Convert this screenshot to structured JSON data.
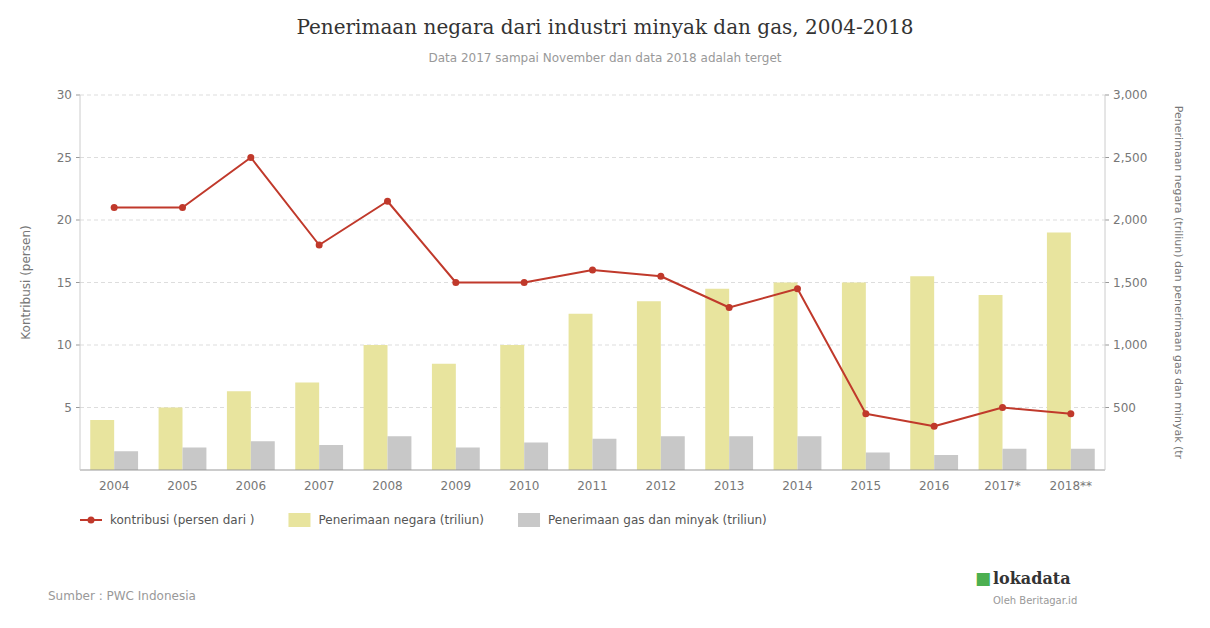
{
  "chart_data": {
    "type": "bar",
    "title": "Penerimaan negara dari industri minyak dan gas, 2004-2018",
    "subtitle": "Data 2017 sampai November dan data 2018 adalah terget",
    "categories": [
      "2004",
      "2005",
      "2006",
      "2007",
      "2008",
      "2009",
      "2010",
      "2011",
      "2012",
      "2013",
      "2014",
      "2015",
      "2016",
      "2017*",
      "2018**"
    ],
    "series": [
      {
        "name": "kontribusi (persen dari )",
        "type": "line",
        "marker": "circle",
        "color": "#c0392b",
        "values": [
          21,
          21,
          25,
          18,
          21.5,
          15,
          15,
          16,
          15.5,
          13,
          14.5,
          4.5,
          3.5,
          5,
          4.5
        ]
      },
      {
        "name": "Penerimaan negara (triliun)",
        "type": "bar",
        "axis": "y2",
        "color": "#e8e49e",
        "values": [
          400,
          500,
          630,
          700,
          1000,
          850,
          1000,
          1250,
          1350,
          1450,
          1500,
          1500,
          1550,
          1400,
          1900
        ]
      },
      {
        "name": "Penerimaan gas dan minyak (triliun)",
        "type": "bar",
        "axis": "y2",
        "color": "#c8c8c8",
        "values": [
          150,
          180,
          230,
          200,
          270,
          180,
          220,
          250,
          270,
          270,
          270,
          140,
          120,
          170,
          170
        ]
      }
    ],
    "ylabel": "Kontribusi (persen)",
    "y2label": "Penerimaan negara (triliun) dan penerimaan gas dan minyak (tr",
    "ylim": [
      0,
      30
    ],
    "yticks": [
      5,
      10,
      15,
      20,
      25,
      30
    ],
    "y2lim": [
      0,
      3000
    ],
    "y2ticks": [
      500,
      {
        "value": 1000,
        "label": "1,000"
      },
      {
        "value": 1500,
        "label": "1,500"
      },
      {
        "value": 2000,
        "label": "2,000"
      },
      {
        "value": 2500,
        "label": "2,500"
      },
      {
        "value": 3000,
        "label": "3,000"
      }
    ],
    "grid": true,
    "legend": "bottom",
    "annotations": [
      {
        "text": "Sumber : PWC Indonesia"
      },
      {
        "text": "■",
        "color": "#4caf50"
      },
      {
        "text": "lokadata"
      },
      {
        "text": "Oleh Beritagar.id"
      }
    ]
  }
}
